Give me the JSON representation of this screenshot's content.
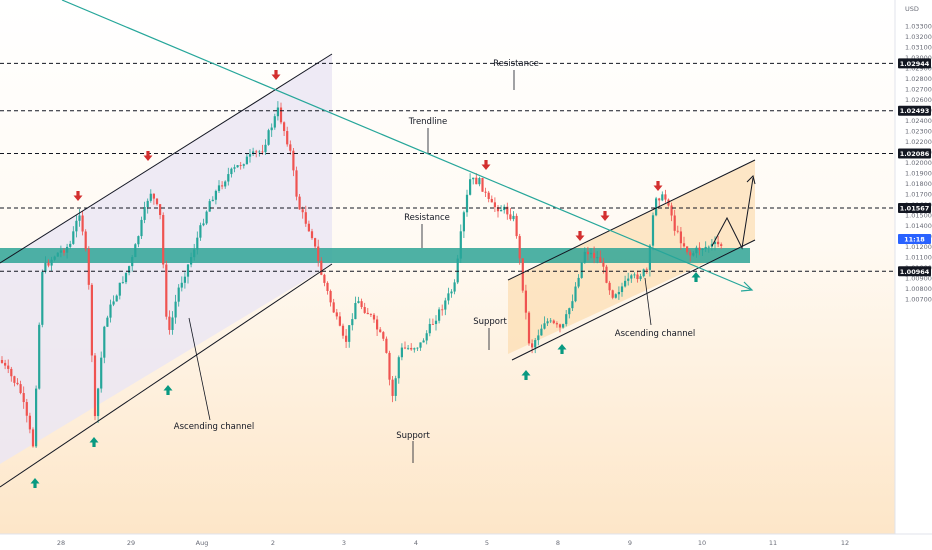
{
  "chart_data": {
    "type": "line",
    "currency": "USD",
    "y_ticks": [
      "1.03300",
      "1.03200",
      "1.03100",
      "1.03000",
      "1.02900",
      "1.02800",
      "1.02700",
      "1.02600",
      "1.02500",
      "1.02400",
      "1.02300",
      "1.02200",
      "1.02100",
      "1.02000",
      "1.01900",
      "1.01800",
      "1.01700",
      "1.01600",
      "1.01500",
      "1.01400",
      "1.01300",
      "1.01200",
      "1.01100",
      "1.01000",
      "1.00900",
      "1.00800",
      "1.00700"
    ],
    "x_ticks": [
      "28",
      "29",
      "Aug",
      "2",
      "3",
      "4",
      "5",
      "8",
      "9",
      "10",
      "11",
      "12"
    ],
    "levels": [
      {
        "value": 1.02944,
        "label": "1.02944"
      },
      {
        "value": 1.02493,
        "label": "1.02493"
      },
      {
        "value": 1.02086,
        "label": "1.02086"
      },
      {
        "value": 1.01567,
        "label": "1.01567"
      },
      {
        "value": 1.00964,
        "label": "1.00964"
      }
    ],
    "current_price": {
      "label": "11:18"
    },
    "annotations": {
      "resistance_top": "Resistance",
      "trendline": "Trendline",
      "resistance_mid": "Resistance",
      "support_mid": "Support",
      "ascending_channel_right": "Ascending channel",
      "ascending_channel_left": "Ascending channel",
      "support_bottom": "Support"
    },
    "colors": {
      "up": "#26a69a",
      "down": "#ef5350",
      "zone": "#26a69a",
      "trendline": "#26a69a",
      "arrow_down": "#d32f2f",
      "arrow_up": "#089981",
      "badge": "#2962ff"
    }
  }
}
